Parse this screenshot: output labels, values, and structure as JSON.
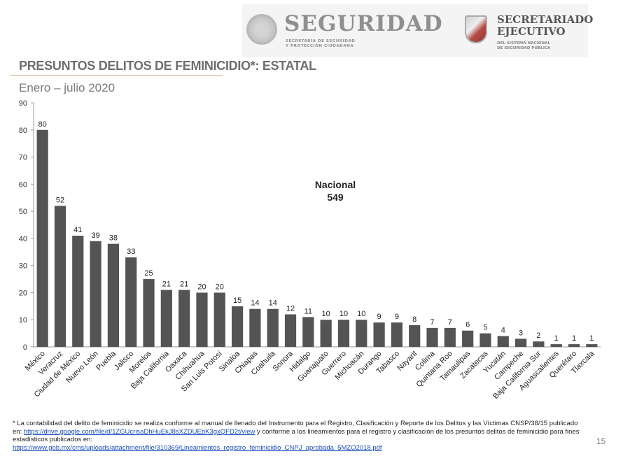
{
  "header": {
    "brand_main": "SEGURIDAD",
    "brand_sub": "SECRETARÍA DE SEGURIDAD\nY PROTECCIÓN CIUDADANA",
    "secretariado_main": "SECRETARIADO\nEJECUTIVO",
    "secretariado_sub": "DEL SISTEMA NACIONAL\nDE SEGURIDAD PÚBLICA",
    "seal_icon": "mexico-seal-icon",
    "shield_icon": "secretariado-shield-icon"
  },
  "chart_data": {
    "type": "bar",
    "title": "PRESUNTOS DELITOS DE FEMINICIDIO*: ESTATAL",
    "subtitle": "Enero – julio 2020",
    "categories": [
      "México",
      "Veracruz",
      "Ciudad de México",
      "Nuevo León",
      "Puebla",
      "Jalisco",
      "Morelos",
      "Baja California",
      "Oaxaca",
      "Chihuahua",
      "San Luis Potosí",
      "Sinaloa",
      "Chiapas",
      "Coahuila",
      "Sonora",
      "Hidalgo",
      "Guanajuato",
      "Guerrero",
      "Michoacán",
      "Durango",
      "Tabasco",
      "Nayarit",
      "Colima",
      "Quintana Roo",
      "Tamaulipas",
      "Zacatecas",
      "Yucatán",
      "Campeche",
      "Baja California Sur",
      "Aguascalientes",
      "Querétaro",
      "Tlaxcala"
    ],
    "values": [
      80,
      52,
      41,
      39,
      38,
      33,
      25,
      21,
      21,
      20,
      20,
      15,
      14,
      14,
      12,
      11,
      10,
      10,
      10,
      9,
      9,
      8,
      7,
      7,
      6,
      5,
      4,
      3,
      2,
      1,
      1,
      1
    ],
    "ylim": [
      0,
      90
    ],
    "yticks": [
      0,
      10,
      20,
      30,
      40,
      50,
      60,
      70,
      80,
      90
    ],
    "xlabel": "",
    "ylabel": "",
    "grid": false,
    "bar_color": "#545454",
    "annotation": {
      "label": "Nacional",
      "value": "549"
    }
  },
  "footnote": {
    "text1": "* La contabilidad del delito de feminicidio se realiza conforme al manual de llenado del Instrumento para el Registro, Clasificación y Reporte de los Delitos y las Víctimas CNSP/38/15 publicado en: ",
    "link1": "https://drive.google.com/file/d/1ZGUcrisaDhHuEkJ8sXZDUEbK3gxQFD2t/view",
    "text2": " y conforme a los lineamientos para el registro y clasificación de los presuntos delitos de feminicidio para fines estadísticos publicados en:",
    "link2": "https://www.gob.mx/cms/uploads/attachment/file/310369/Lineamientos_registro_feminicidio_CNPJ_aprobada_5MZO2018.pdf"
  },
  "page_number": "15"
}
